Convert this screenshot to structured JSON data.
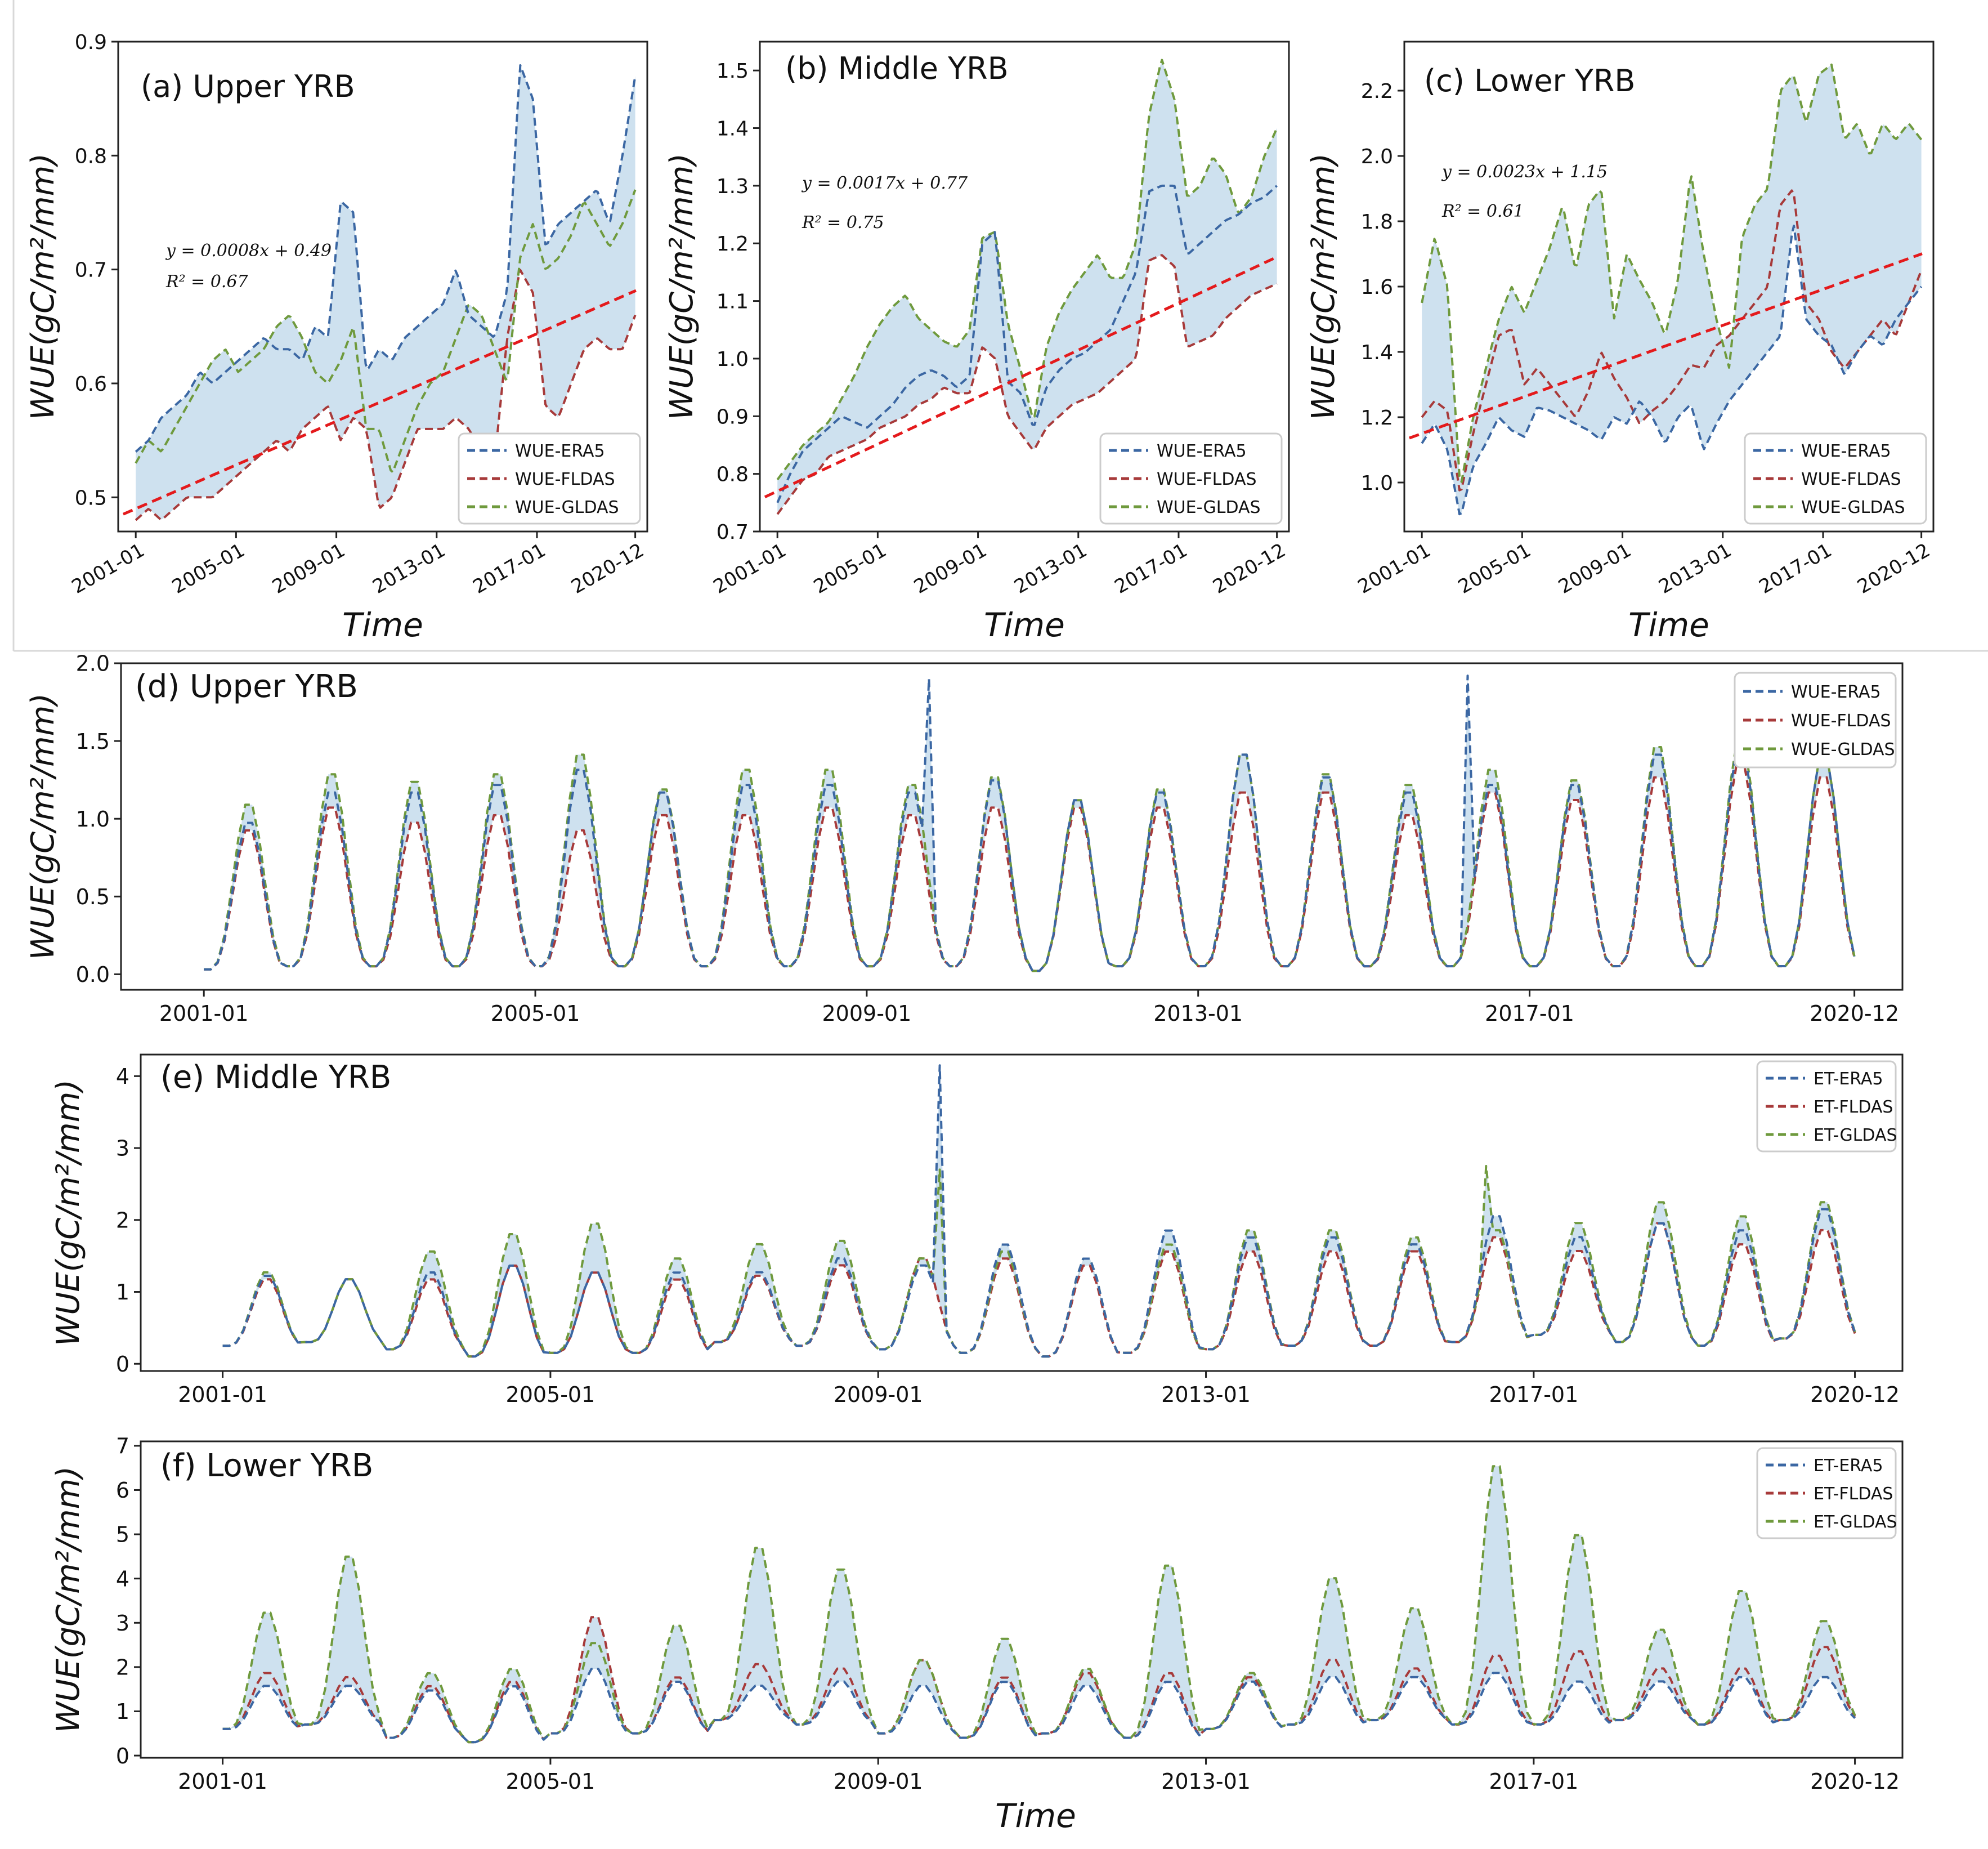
{
  "colors": {
    "era5": "#3b67a3",
    "fldas": "#a73a3a",
    "gldas": "#6f9a3d",
    "fill": "#c5dcec",
    "trend": "#e41a1c"
  },
  "chart_data": [
    {
      "id": "a",
      "type": "line",
      "title": "(a) Upper YRB",
      "xlabel": "Time",
      "ylabel": "WUE(gC/m²/mm)",
      "x_start": 2001.0,
      "x_end": 2020.92,
      "xlim": [
        2000.3,
        2021.4
      ],
      "ylim": [
        0.47,
        0.9
      ],
      "yticks": [
        0.5,
        0.6,
        0.7,
        0.8,
        0.9
      ],
      "xticks": [
        {
          "v": 2001.0,
          "label": "2001-01"
        },
        {
          "v": 2005.0,
          "label": "2005-01"
        },
        {
          "v": 2009.0,
          "label": "2009-01"
        },
        {
          "v": 2013.0,
          "label": "2013-01"
        },
        {
          "v": 2017.0,
          "label": "2017-01"
        },
        {
          "v": 2020.92,
          "label": "2020-12"
        }
      ],
      "legend_position": "lower-right",
      "trend": {
        "equation": "y = 0.0008x + 0.49",
        "r2": "R² = 0.67",
        "slope_per_month": 0.0008,
        "intercept": 0.49
      },
      "series": [
        {
          "name": "WUE-ERA5",
          "color_key": "era5",
          "values": [
            0.54,
            0.55,
            0.57,
            0.58,
            0.59,
            0.61,
            0.6,
            0.61,
            0.62,
            0.63,
            0.64,
            0.63,
            0.63,
            0.62,
            0.65,
            0.64,
            0.76,
            0.75,
            0.61,
            0.63,
            0.62,
            0.64,
            0.65,
            0.66,
            0.67,
            0.7,
            0.66,
            0.65,
            0.64,
            0.68,
            0.88,
            0.85,
            0.72,
            0.74,
            0.75,
            0.76,
            0.77,
            0.74,
            0.8,
            0.87
          ]
        },
        {
          "name": "WUE-FLDAS",
          "color_key": "fldas",
          "values": [
            0.48,
            0.49,
            0.48,
            0.49,
            0.5,
            0.5,
            0.5,
            0.51,
            0.52,
            0.53,
            0.54,
            0.55,
            0.54,
            0.56,
            0.57,
            0.58,
            0.55,
            0.57,
            0.56,
            0.49,
            0.5,
            0.53,
            0.56,
            0.56,
            0.56,
            0.57,
            0.56,
            0.54,
            0.53,
            0.64,
            0.7,
            0.68,
            0.58,
            0.57,
            0.6,
            0.63,
            0.64,
            0.63,
            0.63,
            0.66
          ]
        },
        {
          "name": "WUE-GLDAS",
          "color_key": "gldas",
          "values": [
            0.53,
            0.55,
            0.54,
            0.56,
            0.58,
            0.6,
            0.62,
            0.63,
            0.61,
            0.62,
            0.63,
            0.65,
            0.66,
            0.64,
            0.61,
            0.6,
            0.62,
            0.65,
            0.56,
            0.56,
            0.52,
            0.55,
            0.58,
            0.6,
            0.61,
            0.64,
            0.67,
            0.66,
            0.63,
            0.6,
            0.71,
            0.74,
            0.7,
            0.71,
            0.73,
            0.76,
            0.74,
            0.72,
            0.74,
            0.77
          ]
        }
      ]
    },
    {
      "id": "b",
      "type": "line",
      "title": "(b) Middle YRB",
      "xlabel": "Time",
      "ylabel": "WUE(gC/m²/mm)",
      "x_start": 2001.0,
      "x_end": 2020.92,
      "xlim": [
        2000.3,
        2021.4
      ],
      "ylim": [
        0.7,
        1.55
      ],
      "yticks": [
        0.7,
        0.8,
        0.9,
        1.0,
        1.1,
        1.2,
        1.3,
        1.4,
        1.5
      ],
      "xticks": [
        {
          "v": 2001.0,
          "label": "2001-01"
        },
        {
          "v": 2005.0,
          "label": "2005-01"
        },
        {
          "v": 2009.0,
          "label": "2009-01"
        },
        {
          "v": 2013.0,
          "label": "2013-01"
        },
        {
          "v": 2017.0,
          "label": "2017-01"
        },
        {
          "v": 2020.92,
          "label": "2020-12"
        }
      ],
      "legend_position": "lower-right",
      "trend": {
        "equation": "y = 0.0017x + 0.77",
        "r2": "R² = 0.75",
        "slope_per_month": 0.0017,
        "intercept": 0.77
      },
      "series": [
        {
          "name": "WUE-ERA5",
          "color_key": "era5",
          "values": [
            0.75,
            0.8,
            0.84,
            0.86,
            0.88,
            0.9,
            0.89,
            0.88,
            0.9,
            0.92,
            0.95,
            0.97,
            0.98,
            0.97,
            0.95,
            0.97,
            1.2,
            1.22,
            0.96,
            0.94,
            0.88,
            0.95,
            0.98,
            1.0,
            1.01,
            1.03,
            1.05,
            1.1,
            1.15,
            1.29,
            1.3,
            1.3,
            1.18,
            1.2,
            1.22,
            1.24,
            1.25,
            1.27,
            1.28,
            1.3
          ]
        },
        {
          "name": "WUE-FLDAS",
          "color_key": "fldas",
          "values": [
            0.73,
            0.76,
            0.79,
            0.8,
            0.83,
            0.84,
            0.85,
            0.86,
            0.88,
            0.89,
            0.9,
            0.92,
            0.93,
            0.95,
            0.94,
            0.94,
            1.02,
            1.0,
            0.9,
            0.87,
            0.84,
            0.88,
            0.9,
            0.92,
            0.93,
            0.94,
            0.96,
            0.98,
            1.0,
            1.17,
            1.18,
            1.16,
            1.02,
            1.03,
            1.04,
            1.07,
            1.09,
            1.11,
            1.12,
            1.13
          ]
        },
        {
          "name": "WUE-GLDAS",
          "color_key": "gldas",
          "values": [
            0.79,
            0.82,
            0.85,
            0.87,
            0.89,
            0.93,
            0.97,
            1.02,
            1.06,
            1.09,
            1.11,
            1.07,
            1.05,
            1.03,
            1.02,
            1.05,
            1.21,
            1.22,
            1.06,
            0.98,
            0.89,
            1.02,
            1.08,
            1.12,
            1.15,
            1.18,
            1.14,
            1.14,
            1.2,
            1.42,
            1.52,
            1.45,
            1.28,
            1.3,
            1.35,
            1.32,
            1.25,
            1.28,
            1.35,
            1.4
          ]
        }
      ]
    },
    {
      "id": "c",
      "type": "line",
      "title": "(c) Lower YRB",
      "xlabel": "Time",
      "ylabel": "WUE(gC/m²/mm)",
      "x_start": 2001.0,
      "x_end": 2020.92,
      "xlim": [
        2000.3,
        2021.4
      ],
      "ylim": [
        0.85,
        2.35
      ],
      "yticks": [
        1.0,
        1.2,
        1.4,
        1.6,
        1.8,
        2.0,
        2.2
      ],
      "xticks": [
        {
          "v": 2001.0,
          "label": "2001-01"
        },
        {
          "v": 2005.0,
          "label": "2005-01"
        },
        {
          "v": 2009.0,
          "label": "2009-01"
        },
        {
          "v": 2013.0,
          "label": "2013-01"
        },
        {
          "v": 2017.0,
          "label": "2017-01"
        },
        {
          "v": 2020.92,
          "label": "2020-12"
        }
      ],
      "legend_position": "lower-right",
      "trend": {
        "equation": "y = 0.0023x + 1.15",
        "r2": "R² = 0.61",
        "slope_per_month": 0.0023,
        "intercept": 1.15
      },
      "series": [
        {
          "name": "WUE-ERA5",
          "color_key": "era5",
          "values": [
            1.12,
            1.18,
            1.1,
            0.89,
            1.05,
            1.12,
            1.2,
            1.16,
            1.14,
            1.23,
            1.22,
            1.2,
            1.18,
            1.16,
            1.13,
            1.2,
            1.18,
            1.25,
            1.2,
            1.12,
            1.2,
            1.24,
            1.1,
            1.18,
            1.25,
            1.3,
            1.35,
            1.4,
            1.45,
            1.8,
            1.5,
            1.45,
            1.42,
            1.33,
            1.4,
            1.45,
            1.42,
            1.5,
            1.55,
            1.6
          ]
        },
        {
          "name": "WUE-FLDAS",
          "color_key": "fldas",
          "values": [
            1.2,
            1.25,
            1.22,
            0.96,
            1.15,
            1.3,
            1.45,
            1.47,
            1.3,
            1.35,
            1.3,
            1.25,
            1.2,
            1.28,
            1.4,
            1.32,
            1.26,
            1.18,
            1.22,
            1.25,
            1.3,
            1.36,
            1.35,
            1.42,
            1.45,
            1.5,
            1.55,
            1.6,
            1.85,
            1.9,
            1.55,
            1.5,
            1.4,
            1.35,
            1.4,
            1.45,
            1.5,
            1.45,
            1.55,
            1.65
          ]
        },
        {
          "name": "WUE-GLDAS",
          "color_key": "gldas",
          "values": [
            1.55,
            1.75,
            1.6,
            0.98,
            1.2,
            1.35,
            1.5,
            1.6,
            1.52,
            1.62,
            1.72,
            1.85,
            1.65,
            1.85,
            1.9,
            1.5,
            1.7,
            1.62,
            1.55,
            1.45,
            1.62,
            1.95,
            1.7,
            1.5,
            1.35,
            1.75,
            1.85,
            1.9,
            2.2,
            2.25,
            2.1,
            2.25,
            2.28,
            2.05,
            2.1,
            2.0,
            2.1,
            2.05,
            2.1,
            2.05
          ]
        }
      ]
    },
    {
      "id": "d",
      "type": "line",
      "title": "(d) Upper YRB",
      "xlabel": "",
      "ylabel": "WUE(gC/m²/mm)",
      "x_start": 2001.0,
      "x_end": 2020.92,
      "xlim": [
        2000.0,
        2021.5
      ],
      "ylim": [
        -0.1,
        2.0
      ],
      "yticks": [
        0.0,
        0.5,
        1.0,
        1.5,
        2.0
      ],
      "xticks": [
        {
          "v": 2001.0,
          "label": "2001-01"
        },
        {
          "v": 2005.0,
          "label": "2005-01"
        },
        {
          "v": 2009.0,
          "label": "2009-01"
        },
        {
          "v": 2013.0,
          "label": "2013-01"
        },
        {
          "v": 2017.0,
          "label": "2017-01"
        },
        {
          "v": 2020.92,
          "label": "2020-12"
        }
      ],
      "legend_position": "upper-right",
      "seasonal": {
        "min": [
          0.03,
          0.05,
          0.05,
          0.05,
          0.05,
          0.05,
          0.05,
          0.05,
          0.05,
          0.05,
          0.02,
          0.05,
          0.05,
          0.05,
          0.05,
          0.05,
          0.05,
          0.05,
          0.05,
          0.05
        ],
        "peak_era5": [
          1.0,
          1.2,
          1.2,
          1.25,
          1.35,
          1.2,
          1.25,
          1.25,
          1.2,
          1.28,
          1.15,
          1.2,
          1.45,
          1.3,
          1.2,
          1.25,
          1.25,
          1.45,
          1.5,
          1.45
        ],
        "peak_fldas": [
          0.95,
          1.1,
          1.0,
          1.05,
          0.95,
          1.05,
          1.05,
          1.1,
          1.05,
          1.1,
          1.1,
          1.1,
          1.2,
          1.2,
          1.05,
          1.2,
          1.15,
          1.3,
          1.4,
          1.3
        ],
        "peak_gldas": [
          1.12,
          1.32,
          1.27,
          1.32,
          1.45,
          1.22,
          1.35,
          1.35,
          1.25,
          1.3,
          1.15,
          1.22,
          1.45,
          1.32,
          1.25,
          1.35,
          1.28,
          1.5,
          1.55,
          1.45
        ]
      },
      "spikes": [
        {
          "series": "WUE-ERA5",
          "x": 2009.75,
          "value": 1.9
        },
        {
          "series": "WUE-ERA5",
          "x": 2016.25,
          "value": 1.92
        }
      ],
      "series": [
        {
          "name": "WUE-ERA5",
          "color_key": "era5"
        },
        {
          "name": "WUE-FLDAS",
          "color_key": "fldas"
        },
        {
          "name": "WUE-GLDAS",
          "color_key": "gldas"
        }
      ]
    },
    {
      "id": "e",
      "type": "line",
      "title": "(e) Middle YRB",
      "xlabel": "",
      "ylabel": "WUE(gC/m²/mm)",
      "x_start": 2001.0,
      "x_end": 2020.92,
      "xlim": [
        2000.0,
        2021.5
      ],
      "ylim": [
        -0.1,
        4.3
      ],
      "yticks": [
        0,
        1,
        2,
        3,
        4
      ],
      "xticks": [
        {
          "v": 2001.0,
          "label": "2001-01"
        },
        {
          "v": 2005.0,
          "label": "2005-01"
        },
        {
          "v": 2009.0,
          "label": "2009-01"
        },
        {
          "v": 2013.0,
          "label": "2013-01"
        },
        {
          "v": 2017.0,
          "label": "2017-01"
        },
        {
          "v": 2020.92,
          "label": "2020-12"
        }
      ],
      "legend_position": "upper-right",
      "seasonal": {
        "min": [
          0.25,
          0.3,
          0.2,
          0.1,
          0.15,
          0.15,
          0.3,
          0.25,
          0.2,
          0.15,
          0.1,
          0.15,
          0.2,
          0.25,
          0.25,
          0.3,
          0.4,
          0.3,
          0.25,
          0.35
        ],
        "peak_era5": [
          1.25,
          1.2,
          1.3,
          1.4,
          1.3,
          1.3,
          1.3,
          1.5,
          1.4,
          1.7,
          1.5,
          1.9,
          1.8,
          1.8,
          1.7,
          2.1,
          1.8,
          2.0,
          1.9,
          2.2
        ],
        "peak_fldas": [
          1.2,
          1.2,
          1.2,
          1.4,
          1.3,
          1.2,
          1.25,
          1.4,
          1.5,
          1.5,
          1.4,
          1.6,
          1.6,
          1.6,
          1.6,
          1.8,
          1.6,
          2.0,
          1.7,
          1.9
        ],
        "peak_gldas": [
          1.3,
          1.2,
          1.6,
          1.85,
          2.0,
          1.5,
          1.7,
          1.75,
          1.5,
          1.6,
          1.5,
          1.7,
          1.9,
          1.9,
          1.8,
          1.9,
          2.0,
          2.3,
          2.1,
          2.3
        ]
      },
      "spikes": [
        {
          "series": "ET-ERA5",
          "x": 2009.75,
          "value": 4.15
        },
        {
          "series": "ET-GLDAS",
          "x": 2009.75,
          "value": 2.7
        },
        {
          "series": "ET-GLDAS",
          "x": 2016.38,
          "value": 2.75
        }
      ],
      "series": [
        {
          "name": "ET-ERA5",
          "color_key": "era5"
        },
        {
          "name": "ET-FLDAS",
          "color_key": "fldas"
        },
        {
          "name": "ET-GLDAS",
          "color_key": "gldas"
        }
      ]
    },
    {
      "id": "f",
      "type": "line",
      "title": "(f) Lower YRB",
      "xlabel": "Time",
      "ylabel": "WUE(gC/m²/mm)",
      "x_start": 2001.0,
      "x_end": 2020.92,
      "xlim": [
        2000.0,
        2021.5
      ],
      "ylim": [
        -0.05,
        7.1
      ],
      "yticks": [
        0,
        1,
        2,
        3,
        4,
        5,
        6,
        7
      ],
      "xticks": [
        {
          "v": 2001.0,
          "label": "2001-01"
        },
        {
          "v": 2005.0,
          "label": "2005-01"
        },
        {
          "v": 2009.0,
          "label": "2009-01"
        },
        {
          "v": 2013.0,
          "label": "2013-01"
        },
        {
          "v": 2017.0,
          "label": "2017-01"
        },
        {
          "v": 2020.92,
          "label": "2020-12"
        }
      ],
      "legend_position": "upper-right",
      "seasonal": {
        "min": [
          0.6,
          0.7,
          0.4,
          0.3,
          0.5,
          0.5,
          0.8,
          0.7,
          0.5,
          0.4,
          0.5,
          0.4,
          0.6,
          0.7,
          0.8,
          0.7,
          0.7,
          0.8,
          0.7,
          0.8
        ],
        "peak_era5": [
          1.6,
          1.6,
          1.5,
          1.6,
          2.0,
          1.7,
          1.6,
          1.7,
          1.6,
          1.7,
          1.6,
          1.7,
          1.7,
          1.8,
          1.8,
          1.9,
          1.7,
          1.7,
          1.8,
          1.8
        ],
        "peak_fldas": [
          1.9,
          1.8,
          1.6,
          1.7,
          3.2,
          1.8,
          2.1,
          2.0,
          2.2,
          1.8,
          1.9,
          1.9,
          1.8,
          2.2,
          2.0,
          2.3,
          2.4,
          2.0,
          2.0,
          2.5
        ],
        "peak_gldas": [
          3.3,
          4.6,
          1.9,
          2.0,
          2.6,
          3.0,
          4.8,
          4.3,
          2.2,
          2.7,
          2.0,
          4.4,
          1.9,
          4.1,
          3.4,
          6.7,
          5.1,
          2.9,
          3.8,
          3.1
        ]
      },
      "series": [
        {
          "name": "ET-ERA5",
          "color_key": "era5"
        },
        {
          "name": "ET-FLDAS",
          "color_key": "fldas"
        },
        {
          "name": "ET-GLDAS",
          "color_key": "gldas"
        }
      ]
    }
  ]
}
